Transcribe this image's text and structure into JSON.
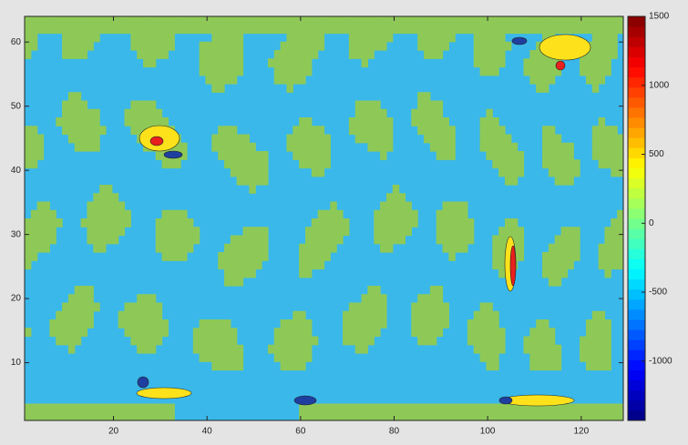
{
  "chart_data": {
    "type": "contour",
    "colormap": "jet",
    "xlim": [
      1,
      129
    ],
    "ylim": [
      1,
      64
    ],
    "xticks": [
      20,
      40,
      60,
      80,
      100,
      120
    ],
    "yticks": [
      10,
      20,
      30,
      40,
      50,
      60
    ],
    "clim": [
      -1430,
      1500
    ],
    "cticks": [
      -1000,
      -500,
      0,
      500,
      1000,
      1500
    ]
  }
}
